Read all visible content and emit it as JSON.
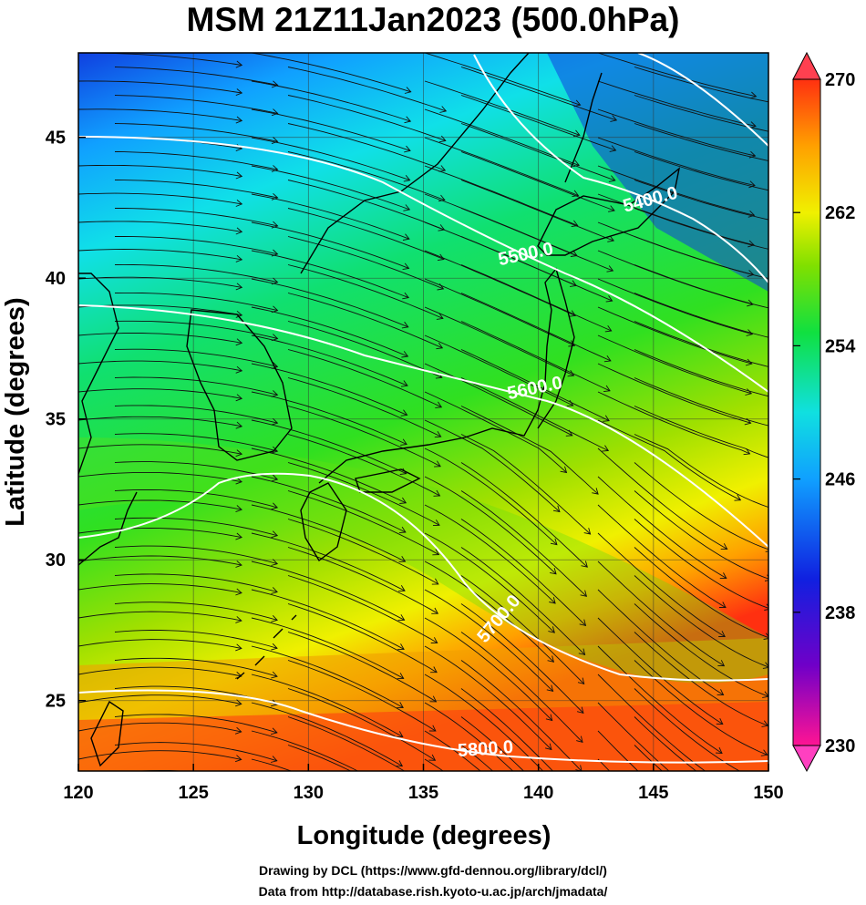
{
  "title": "MSM 21Z11Jan2023 (500.0hPa)",
  "map": {
    "region": "Japan and surrounding seas",
    "lon_range": [
      120,
      150
    ],
    "lat_range": [
      22.5,
      48
    ],
    "x_ticks": [
      "120",
      "125",
      "130",
      "135",
      "140",
      "145",
      "150"
    ],
    "y_ticks": [
      "25",
      "30",
      "35",
      "40",
      "45"
    ],
    "xlabel": "Longitude (degrees)",
    "ylabel": "Latitude  (degrees)",
    "shading": "temperature (K), rainbow colormap",
    "vectors": "wind streamlines",
    "contours": [
      {
        "label": "5400.0"
      },
      {
        "label": "5500.0"
      },
      {
        "label": "5600.0"
      },
      {
        "label": "5700.0"
      },
      {
        "label": "5800.0"
      }
    ],
    "colorbar": {
      "ticks": [
        "270",
        "262",
        "254",
        "246",
        "238",
        "230"
      ],
      "range": [
        230,
        270
      ],
      "colors": [
        "#ff1493",
        "#5a00c8",
        "#1030e0",
        "#10b0ff",
        "#10e0e0",
        "#10e030",
        "#80e000",
        "#f0f000",
        "#ffa000",
        "#ff3000",
        "#ff4050"
      ]
    }
  },
  "credits": {
    "line1": "Drawing by DCL (https://www.gfd-dennou.org/library/dcl/)",
    "line2": "Data from http://database.rish.kyoto-u.ac.jp/arch/jmadata/"
  }
}
